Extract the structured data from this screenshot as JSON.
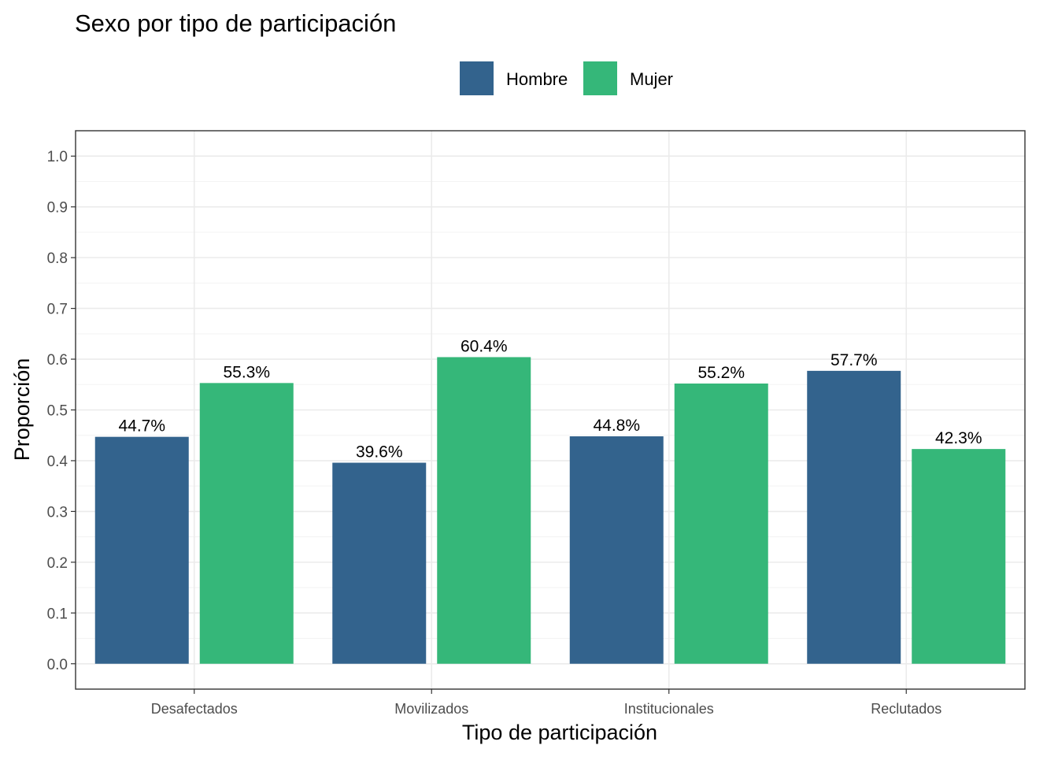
{
  "chart_data": {
    "type": "bar",
    "title": "Sexo por tipo de participación",
    "xlabel": "Tipo de participación",
    "ylabel": "Proporción",
    "categories": [
      "Desafectados",
      "Movilizados",
      "Institucionales",
      "Reclutados"
    ],
    "series": [
      {
        "name": "Hombre",
        "color": "#33638D",
        "values": [
          0.447,
          0.396,
          0.448,
          0.577
        ],
        "labels": [
          "44.7%",
          "39.6%",
          "44.8%",
          "57.7%"
        ]
      },
      {
        "name": "Mujer",
        "color": "#35B779",
        "values": [
          0.553,
          0.604,
          0.552,
          0.423
        ],
        "labels": [
          "55.3%",
          "60.4%",
          "55.2%",
          "42.3%"
        ]
      }
    ],
    "yticks": [
      "0.0",
      "0.1",
      "0.2",
      "0.3",
      "0.4",
      "0.5",
      "0.6",
      "0.7",
      "0.8",
      "0.9",
      "1.0"
    ],
    "ylim": [
      -0.05,
      1.05
    ],
    "grid": true,
    "legend_position": "top"
  }
}
